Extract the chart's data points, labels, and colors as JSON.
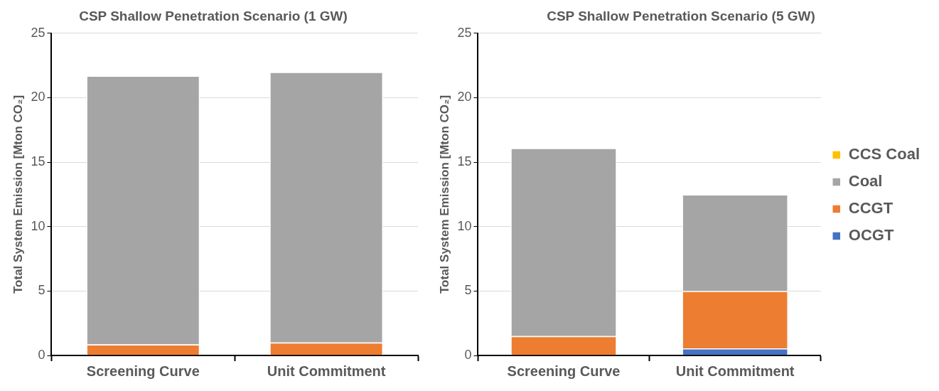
{
  "chart_data": [
    {
      "type": "bar",
      "title": "CSP Shallow Penetration Scenario (1 GW)",
      "ylabel": "Total System Emission [Mton CO₂]",
      "categories": [
        "Screening Curve",
        "Unit Commitment"
      ],
      "stacked": true,
      "ylim": [
        0,
        25
      ],
      "yticks": [
        0,
        5,
        10,
        15,
        20,
        25
      ],
      "grid": "y",
      "legend": false,
      "series": [
        {
          "color": "#4472c4",
          "values": [
            0,
            null
          ]
        },
        {
          "color": "#ed7d31",
          "values": [
            0.85,
            1.0
          ]
        },
        {
          "color": "#a5a5a5",
          "values": [
            20.85,
            21.0
          ]
        }
      ]
    },
    {
      "type": "bar",
      "title": "CSP Shallow Penetration Scenario (5 GW)",
      "ylabel": "Total System Emission [Mton CO₂]",
      "categories": [
        "Screening Curve",
        "Unit Commitment"
      ],
      "stacked": true,
      "ylim": [
        0,
        25
      ],
      "yticks": [
        0,
        5,
        10,
        15,
        20,
        25
      ],
      "grid": "y",
      "legend": "right",
      "series": [
        {
          "name": "OCGT",
          "color": "#4472c4",
          "values": [
            0,
            0.55
          ]
        },
        {
          "name": "CCGT",
          "color": "#ed7d31",
          "values": [
            1.5,
            4.45
          ]
        },
        {
          "name": "Coal",
          "color": "#a5a5a5",
          "values": [
            14.6,
            7.5
          ]
        },
        {
          "name": "CCS Coal",
          "color": "#ffc000",
          "values": [
            0,
            0
          ]
        }
      ]
    }
  ]
}
